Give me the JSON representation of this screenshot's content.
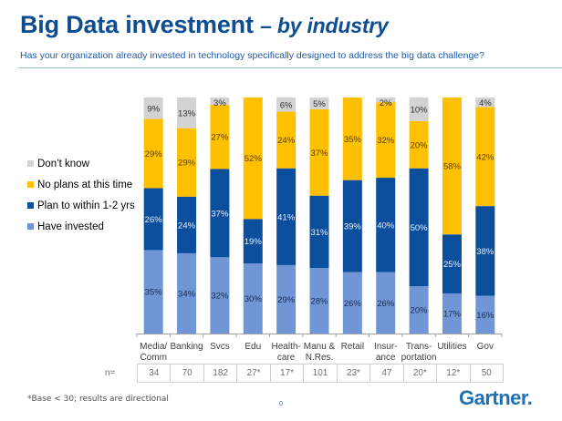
{
  "header": {
    "title_main": "Big Data investment",
    "title_sub": "– by industry",
    "subtitle": "Has your organization already invested in technology specifically designed to address the big data challenge?"
  },
  "colors": {
    "title": "#0E4D92",
    "have_invested": "#7096D6",
    "plan": "#0B4F9C",
    "no_plans": "#FFC000",
    "dont_know": "#D3D3D3"
  },
  "chart_data": {
    "type": "bar",
    "stacked": true,
    "title": "Big Data investment – by industry",
    "xlabel": "",
    "ylabel": "",
    "ylim": [
      0,
      100
    ],
    "grid": false,
    "legend_position": "left",
    "categories": [
      "Media/ Comm",
      "Banking",
      "Svcs",
      "Edu",
      "Health- care",
      "Manu & N.Res.",
      "Retail",
      "Insur- ance",
      "Trans- portation",
      "Utilities",
      "Gov"
    ],
    "category_lines": [
      [
        "Media/",
        "Comm"
      ],
      [
        "Banking"
      ],
      [
        "Svcs"
      ],
      [
        "Edu"
      ],
      [
        "Health-",
        "care"
      ],
      [
        "Manu &",
        "N.Res."
      ],
      [
        "Retail"
      ],
      [
        "Insur-",
        "ance"
      ],
      [
        "Trans-",
        "portation"
      ],
      [
        "Utilities"
      ],
      [
        "Gov"
      ]
    ],
    "series": [
      {
        "name": "Have invested",
        "color": "#7096D6",
        "label_color": "#1A2A50",
        "values": [
          35,
          34,
          32,
          30,
          29,
          28,
          26,
          26,
          20,
          17,
          16
        ]
      },
      {
        "name": "Plan to within 1-2 yrs",
        "color": "#0B4F9C",
        "label_color": "#E8EEF8",
        "values": [
          26,
          24,
          37,
          19,
          41,
          31,
          39,
          40,
          50,
          25,
          38
        ]
      },
      {
        "name": "No plans at this time",
        "color": "#FFC000",
        "label_color": "#5A4000",
        "values": [
          29,
          29,
          27,
          52,
          24,
          37,
          35,
          32,
          20,
          58,
          42
        ]
      },
      {
        "name": "Don't know",
        "color": "#D3D3D3",
        "label_color": "#303030",
        "values": [
          9,
          13,
          3,
          null,
          6,
          5,
          null,
          2,
          10,
          null,
          4
        ]
      }
    ],
    "n_label": "n=",
    "n_values": [
      "34",
      "70",
      "182",
      "27*",
      "17*",
      "101",
      "23*",
      "47",
      "20*",
      "12*",
      "50"
    ]
  },
  "legend": {
    "items": [
      {
        "label": "Don’t know",
        "color": "#D3D3D3"
      },
      {
        "label": "No plans at this time",
        "color": "#FFC000"
      },
      {
        "label": "Plan to within 1-2 yrs",
        "color": "#0B4F9C"
      },
      {
        "label": "Have invested",
        "color": "#7096D6"
      }
    ]
  },
  "footer": {
    "footnote": "*Base < 30; results are directional",
    "page_number": "0",
    "logo": "Gartner."
  }
}
